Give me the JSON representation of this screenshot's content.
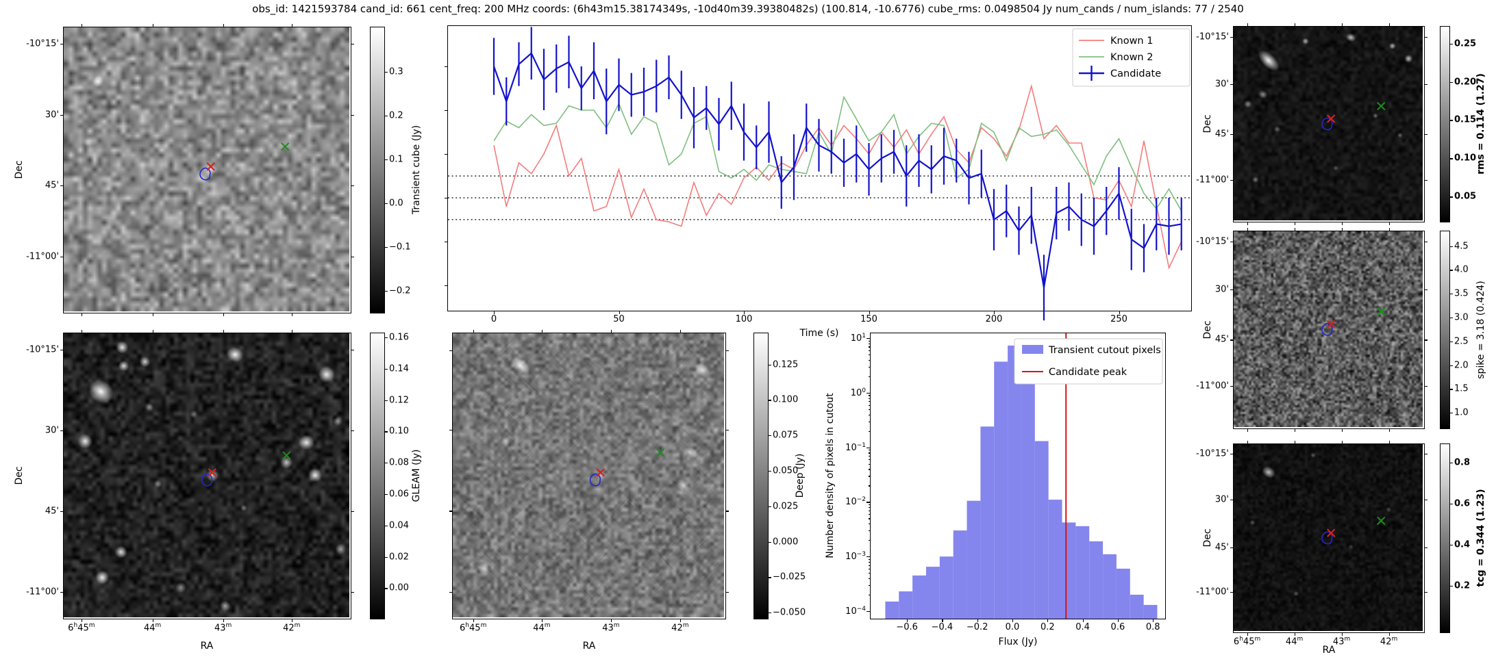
{
  "title": "obs_id: 1421593784 cand_id: 661 cent_freq: 200 MHz coords: (6h43m15.38174349s, -10d40m39.39380482s) (100.814, -10.6776) cube_rms: 0.0498504 Jy num_cands / num_islands: 77 / 2540",
  "axis": {
    "dec_label": "Dec",
    "ra_label": "RA",
    "dec_ticks": [
      "-10°15'",
      "30'",
      "45'",
      "-11°00'"
    ],
    "ra_ticks": [
      "6h45m",
      "44m",
      "43m",
      "42m"
    ]
  },
  "colorbars": {
    "transient": {
      "label": "Transient cube (Jy)",
      "ticks": [
        0.3,
        0.2,
        0.1,
        0.0,
        -0.1,
        -0.2
      ],
      "vmin": -0.247,
      "vmax": 0.402,
      "decimals": 1,
      "bold": false
    },
    "gleam": {
      "label": "GLEAM (Jy)",
      "ticks": [
        0.16,
        0.14,
        0.12,
        0.1,
        0.08,
        0.06,
        0.04,
        0.02,
        0.0
      ],
      "vmin": -0.0186,
      "vmax": 0.1626,
      "decimals": 2,
      "bold": false
    },
    "deep": {
      "label": "Deep (Jy)",
      "ticks": [
        0.125,
        0.1,
        0.075,
        0.05,
        0.025,
        0.0,
        -0.025,
        -0.05
      ],
      "vmin": -0.0533,
      "vmax": 0.147,
      "decimals": 3,
      "bold": false
    },
    "rms": {
      "label": "rms = 0.114 (1.27)",
      "ticks": [
        0.25,
        0.2,
        0.15,
        0.1,
        0.05
      ],
      "vmin": 0.019,
      "vmax": 0.272,
      "decimals": 2,
      "bold": true
    },
    "spike": {
      "label": "spike = 3.18 (0.424)",
      "ticks": [
        4.5,
        4.0,
        3.5,
        3.0,
        2.5,
        2.0,
        1.5,
        1.0
      ],
      "vmin": 0.7,
      "vmax": 4.81,
      "decimals": 1,
      "bold": false
    },
    "tcg": {
      "label": "tcg = 0.344 (1.23)",
      "ticks": [
        0.8,
        0.6,
        0.4,
        0.2
      ],
      "vmin": -0.02,
      "vmax": 0.89,
      "decimals": 1,
      "bold": true
    }
  },
  "markers": {
    "candidate_cross_color": "#d62020",
    "known_cross_color": "#1f8c1f",
    "contour_color": "#2626cc"
  },
  "chart_data": [
    {
      "id": "candidate-lightcurve",
      "type": "line",
      "xlabel": "Time (s)",
      "xticks": [
        0,
        50,
        100,
        150,
        200,
        250
      ],
      "yticks": [
        0.3,
        0.2,
        0.1,
        0.0,
        -0.1,
        -0.2
      ],
      "ylim": [
        -0.261,
        0.392
      ],
      "hlines": [
        0.0498504,
        0.0,
        -0.0498504
      ],
      "legend_position": "upper right",
      "x": [
        0,
        5,
        10,
        15,
        20,
        25,
        30,
        35,
        40,
        45,
        50,
        55,
        60,
        65,
        70,
        75,
        80,
        85,
        90,
        95,
        100,
        105,
        110,
        115,
        120,
        125,
        130,
        135,
        140,
        145,
        150,
        155,
        160,
        165,
        170,
        175,
        180,
        185,
        190,
        195,
        200,
        205,
        210,
        215,
        220,
        225,
        230,
        235,
        240,
        245,
        250,
        255,
        260,
        265,
        270,
        275
      ],
      "series": [
        {
          "name": "Known 1",
          "color": "#f47c7c",
          "values": [
            0.12,
            -0.02,
            0.08,
            0.055,
            0.1,
            0.165,
            0.05,
            0.09,
            -0.03,
            -0.02,
            0.065,
            -0.045,
            0.02,
            -0.05,
            -0.055,
            -0.065,
            0.035,
            -0.04,
            0.01,
            -0.015,
            0.045,
            0.07,
            0.04,
            0.08,
            0.065,
            0.12,
            0.16,
            0.12,
            0.165,
            0.135,
            0.1,
            0.15,
            0.115,
            0.155,
            0.1,
            0.145,
            0.185,
            0.11,
            0.08,
            0.16,
            0.135,
            0.095,
            0.155,
            0.255,
            0.135,
            0.165,
            0.125,
            0.125,
            0.0,
            -0.005,
            0.04,
            -0.02,
            0.13,
            -0.015,
            -0.16,
            -0.1
          ]
        },
        {
          "name": "Known 2",
          "color": "#7fbf7f",
          "values": [
            0.13,
            0.175,
            0.16,
            0.19,
            0.165,
            0.17,
            0.21,
            0.2,
            0.2,
            0.16,
            0.215,
            0.145,
            0.185,
            0.17,
            0.075,
            0.1,
            0.17,
            0.185,
            0.06,
            0.045,
            0.065,
            0.04,
            0.075,
            0.065,
            0.06,
            0.055,
            0.15,
            0.1,
            0.23,
            0.18,
            0.13,
            0.15,
            0.19,
            0.1,
            0.14,
            0.17,
            0.165,
            0.045,
            0.065,
            0.17,
            0.15,
            0.085,
            0.16,
            0.14,
            0.145,
            0.155,
            0.12,
            0.075,
            0.03,
            0.095,
            0.135,
            0.07,
            0.01,
            -0.025,
            0.02,
            -0.03
          ]
        },
        {
          "name": "Candidate",
          "color": "#1212cc",
          "values": [
            0.3,
            0.22,
            0.305,
            0.33,
            0.27,
            0.295,
            0.31,
            0.25,
            0.29,
            0.22,
            0.258,
            0.235,
            0.242,
            0.255,
            0.275,
            0.235,
            0.183,
            0.205,
            0.168,
            0.21,
            0.15,
            0.115,
            0.15,
            0.035,
            0.07,
            0.16,
            0.12,
            0.105,
            0.08,
            0.1,
            0.065,
            0.09,
            0.105,
            0.05,
            0.085,
            0.065,
            0.095,
            0.085,
            0.045,
            0.055,
            -0.05,
            -0.03,
            -0.075,
            -0.04,
            -0.205,
            -0.035,
            -0.02,
            -0.05,
            -0.065,
            -0.03,
            0.01,
            -0.095,
            -0.115,
            -0.06,
            -0.065,
            -0.06
          ],
          "errors": [
            0.065,
            0.055,
            0.05,
            0.06,
            0.07,
            0.055,
            0.06,
            0.05,
            0.065,
            0.075,
            0.06,
            0.05,
            0.055,
            0.06,
            0.05,
            0.055,
            0.07,
            0.05,
            0.06,
            0.055,
            0.065,
            0.05,
            0.07,
            0.06,
            0.075,
            0.055,
            0.06,
            0.05,
            0.055,
            0.065,
            0.06,
            0.055,
            0.05,
            0.07,
            0.06,
            0.055,
            0.065,
            0.05,
            0.06,
            0.055,
            0.07,
            0.06,
            0.055,
            0.065,
            0.075,
            0.06,
            0.055,
            0.06,
            0.065,
            0.055,
            0.06,
            0.07,
            0.055,
            0.06,
            0.065,
            0.06
          ]
        }
      ]
    },
    {
      "id": "flux-histogram",
      "type": "bar",
      "xlabel": "Flux (Jy)",
      "ylabel": "Number density of pixels in cutout",
      "bar_color": "#8585ee",
      "bar_label": "Transient cutout pixels",
      "bin_start": -0.7235,
      "bin_width": 0.0774,
      "values": [
        0.00015,
        0.00023,
        0.00045,
        0.00065,
        0.001,
        0.003,
        0.0105,
        0.24,
        3.7,
        7.3,
        2.4,
        0.13,
        0.011,
        0.0042,
        0.0036,
        0.0019,
        0.0011,
        0.0006,
        0.0002,
        0.00013
      ],
      "vline": {
        "label": "Candidate peak",
        "x": 0.305,
        "color": "#dd1111"
      },
      "xticks": [
        -0.6,
        -0.4,
        -0.2,
        0.0,
        0.2,
        0.4,
        0.6,
        0.8
      ],
      "ytick_exponents": [
        1,
        0,
        -1,
        -2,
        -3,
        -4
      ],
      "yscale": "log",
      "ylim": [
        7e-05,
        11
      ],
      "xlim": [
        -0.807,
        0.877
      ],
      "legend": [
        "Transient cutout pixels",
        "Candidate peak"
      ]
    }
  ],
  "panels": {
    "transient_cube": {
      "name": "Transient cube cutout",
      "colorbar": "Transient cube (Jy)"
    },
    "gleam": {
      "name": "GLEAM cutout",
      "colorbar": "GLEAM (Jy)"
    },
    "deep": {
      "name": "Deep image cutout",
      "colorbar": "Deep (Jy)"
    },
    "rms": {
      "name": "rms map cutout",
      "colorbar": "rms = 0.114 (1.27)"
    },
    "spike": {
      "name": "spike map cutout",
      "colorbar": "spike = 3.18 (0.424)"
    },
    "tcg": {
      "name": "tcg map cutout",
      "colorbar": "tcg = 0.344 (1.23)"
    }
  }
}
